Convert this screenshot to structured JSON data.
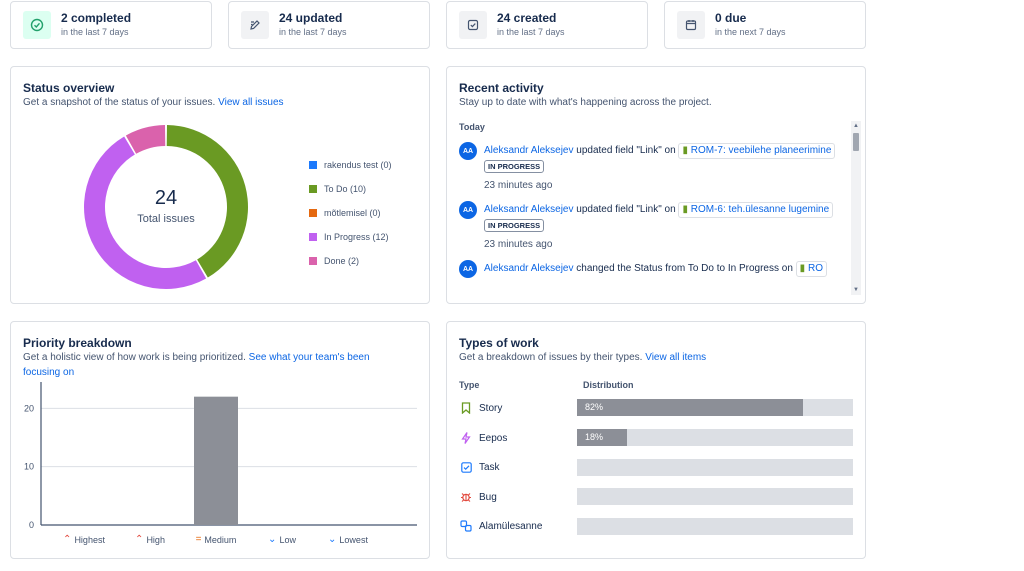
{
  "stats": [
    {
      "value": "2 completed",
      "sub": "in the last 7 days",
      "icon": "check-circle-icon"
    },
    {
      "value": "24 updated",
      "sub": "in the last 7 days",
      "icon": "edit-icon"
    },
    {
      "value": "24 created",
      "sub": "in the last 7 days",
      "icon": "add-task-icon"
    },
    {
      "value": "0 due",
      "sub": "in the next 7 days",
      "icon": "calendar-icon"
    }
  ],
  "status_overview": {
    "title": "Status overview",
    "subtitle": "Get a snapshot of the status of your issues.",
    "link": "View all issues",
    "total_value": "24",
    "total_label": "Total issues",
    "legend": [
      {
        "label": "rakendus test (0)",
        "color": "#1d7afc"
      },
      {
        "label": "To Do (10)",
        "color": "#6a9a23"
      },
      {
        "label": "mõtlemisel (0)",
        "color": "#e56910"
      },
      {
        "label": "In Progress (12)",
        "color": "#c061f0"
      },
      {
        "label": "Done (2)",
        "color": "#da62ac"
      }
    ]
  },
  "recent_activity": {
    "title": "Recent activity",
    "subtitle": "Stay up to date with what's happening across the project.",
    "day": "Today",
    "items": [
      {
        "avatar": "AA",
        "user": "Aleksandr Aleksejev",
        "action": "updated field \"Link\" on",
        "issue": "ROM-7: veebilehe planeerimine",
        "status": "IN PROGRESS",
        "time": "23 minutes ago"
      },
      {
        "avatar": "AA",
        "user": "Aleksandr Aleksejev",
        "action": "updated field \"Link\" on",
        "issue": "ROM-6: teh.ülesanne lugemine",
        "status": "IN PROGRESS",
        "time": "23 minutes ago"
      },
      {
        "avatar": "AA",
        "user": "Aleksandr Aleksejev",
        "action": "changed the Status from To Do to In Progress on",
        "issue": "RO",
        "status": "",
        "time": ""
      }
    ]
  },
  "priority": {
    "title": "Priority breakdown",
    "subtitle": "Get a holistic view of how work is being prioritized.",
    "link": "See what your team's been focusing on"
  },
  "types_of_work": {
    "title": "Types of work",
    "subtitle": "Get a breakdown of issues by their types.",
    "link": "View all items",
    "col_type": "Type",
    "col_distribution": "Distribution",
    "rows": [
      {
        "name": "Story",
        "percent": 82,
        "label": "82%",
        "icon": "story-icon",
        "color": "#6a9a23"
      },
      {
        "name": "Eepos",
        "percent": 18,
        "label": "18%",
        "icon": "epic-icon",
        "color": "#c061f0"
      },
      {
        "name": "Task",
        "percent": 0,
        "label": "",
        "icon": "task-icon",
        "color": "#1d7afc"
      },
      {
        "name": "Bug",
        "percent": 0,
        "label": "",
        "icon": "bug-icon",
        "color": "#e2483d"
      },
      {
        "name": "Alamülesanne",
        "percent": 0,
        "label": "",
        "icon": "subtask-icon",
        "color": "#1d7afc"
      }
    ]
  },
  "chart_data": [
    {
      "type": "pie",
      "categories": [
        "rakendus test",
        "To Do",
        "mõtlemisel",
        "In Progress",
        "Done"
      ],
      "values": [
        0,
        10,
        0,
        12,
        2
      ],
      "colors": [
        "#1d7afc",
        "#6a9a23",
        "#e56910",
        "#c061f0",
        "#da62ac"
      ],
      "legend": "right"
    },
    {
      "type": "bar",
      "categories": [
        "Highest",
        "High",
        "Medium",
        "Low",
        "Lowest"
      ],
      "values": [
        0,
        0,
        22,
        0,
        0
      ],
      "yticks": [
        "0",
        "10",
        "20"
      ],
      "ylim": [
        0,
        24
      ],
      "grid": true,
      "bar_color": "#8c8f97",
      "priority_icons": [
        "highest-priority-icon",
        "high-priority-icon",
        "medium-priority-icon",
        "low-priority-icon",
        "lowest-priority-icon"
      ],
      "priority_colors": [
        "#e2483d",
        "#e2483d",
        "#e56910",
        "#1d7afc",
        "#1d7afc"
      ]
    }
  ]
}
